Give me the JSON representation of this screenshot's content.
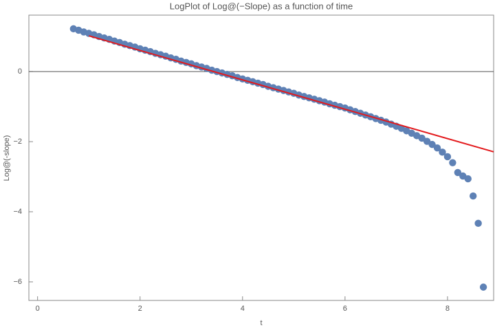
{
  "chart_data": {
    "type": "scatter",
    "title": "LogPlot of Log@(−Slope) as a function of time",
    "x_label": "t",
    "y_label": "Log@(-slope)",
    "xlim": [
      -0.17,
      8.9
    ],
    "ylim": [
      -6.53,
      1.61
    ],
    "xticks": [
      0,
      2,
      4,
      6,
      8
    ],
    "yticks": [
      0,
      {
        "value": -2,
        "label": "−2"
      },
      {
        "value": -4,
        "label": "−4"
      },
      {
        "value": -6,
        "label": "−6"
      }
    ],
    "zero_line": true,
    "series": [
      {
        "type": "scatter",
        "color": "#5e81b5",
        "x": [
          0.7,
          0.8,
          0.9,
          1.0,
          1.1,
          1.2,
          1.3,
          1.4,
          1.5,
          1.6,
          1.7,
          1.8,
          1.9,
          2.0,
          2.1,
          2.2,
          2.3,
          2.4,
          2.5,
          2.6,
          2.7,
          2.8,
          2.9,
          3.0,
          3.1,
          3.2,
          3.3,
          3.4,
          3.5,
          3.6,
          3.7,
          3.8,
          3.9,
          4.0,
          4.1,
          4.2,
          4.3,
          4.4,
          4.5,
          4.6,
          4.7,
          4.8,
          4.9,
          5.0,
          5.1,
          5.2,
          5.3,
          5.4,
          5.5,
          5.6,
          5.7,
          5.8,
          5.9,
          6.0,
          6.1,
          6.2,
          6.3,
          6.4,
          6.5,
          6.6,
          6.7,
          6.8,
          6.9,
          7.0,
          7.1,
          7.2,
          7.3,
          7.4,
          7.5,
          7.6,
          7.7,
          7.8,
          7.9,
          8.0,
          8.1,
          8.2,
          8.3,
          8.4,
          8.5,
          8.6,
          8.7
        ],
        "values": [
          1.22,
          1.18,
          1.13,
          1.09,
          1.05,
          1.0,
          0.96,
          0.92,
          0.87,
          0.83,
          0.78,
          0.74,
          0.7,
          0.65,
          0.61,
          0.57,
          0.52,
          0.48,
          0.44,
          0.39,
          0.35,
          0.3,
          0.26,
          0.22,
          0.17,
          0.13,
          0.09,
          0.04,
          0.0,
          -0.04,
          -0.08,
          -0.12,
          -0.17,
          -0.21,
          -0.25,
          -0.29,
          -0.33,
          -0.37,
          -0.42,
          -0.46,
          -0.5,
          -0.54,
          -0.58,
          -0.62,
          -0.67,
          -0.71,
          -0.75,
          -0.79,
          -0.83,
          -0.87,
          -0.92,
          -0.96,
          -1.0,
          -1.04,
          -1.09,
          -1.14,
          -1.19,
          -1.24,
          -1.29,
          -1.34,
          -1.39,
          -1.44,
          -1.5,
          -1.56,
          -1.62,
          -1.69,
          -1.76,
          -1.83,
          -1.9,
          -1.99,
          -2.08,
          -2.18,
          -2.3,
          -2.43,
          -2.6,
          -2.88,
          -2.98,
          -3.06,
          -3.55,
          -4.33,
          -6.15
        ]
      },
      {
        "type": "line",
        "color": "#e3191c",
        "x": [
          1.0,
          8.9
        ],
        "values": [
          1.02,
          -2.29
        ]
      }
    ]
  }
}
